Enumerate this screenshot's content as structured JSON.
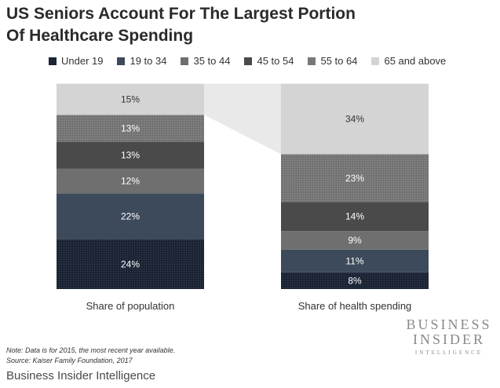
{
  "title": "US Seniors Account For The Largest Portion Of Healthcare Spending",
  "note": "Note: Data is for 2015, the most recent year available.",
  "source": "Source: Kaiser Family Foundation, 2017",
  "footer": "Business Insider Intelligence",
  "logo": {
    "line1": "BUSINESS",
    "line2": "INSIDER",
    "line3": "INTELLIGENCE"
  },
  "chart_data": {
    "type": "bar",
    "stacked": true,
    "percent_stacked": true,
    "categories": [
      "Share of population",
      "Share of health spending"
    ],
    "series": [
      {
        "name": "Under 19",
        "color": "#1c2536",
        "textured": true,
        "values": [
          24,
          8
        ]
      },
      {
        "name": "19 to 34",
        "color": "#3d4a5c",
        "textured": false,
        "values": [
          22,
          11
        ]
      },
      {
        "name": "35 to 44",
        "color": "#6f6f6f",
        "textured": false,
        "values": [
          12,
          9
        ]
      },
      {
        "name": "45 to 54",
        "color": "#4a4a4a",
        "textured": false,
        "values": [
          13,
          14
        ]
      },
      {
        "name": "55 to 64",
        "color": "#787878",
        "textured": true,
        "values": [
          13,
          23
        ]
      },
      {
        "name": "65 and above",
        "color": "#d4d4d4",
        "textured": false,
        "values": [
          15,
          34
        ]
      }
    ],
    "value_suffix": "%",
    "connector": {
      "from_series": "65 and above",
      "color": "#e9e9e9"
    },
    "legend_position": "top",
    "grid": false,
    "ylim": [
      0,
      100
    ]
  }
}
